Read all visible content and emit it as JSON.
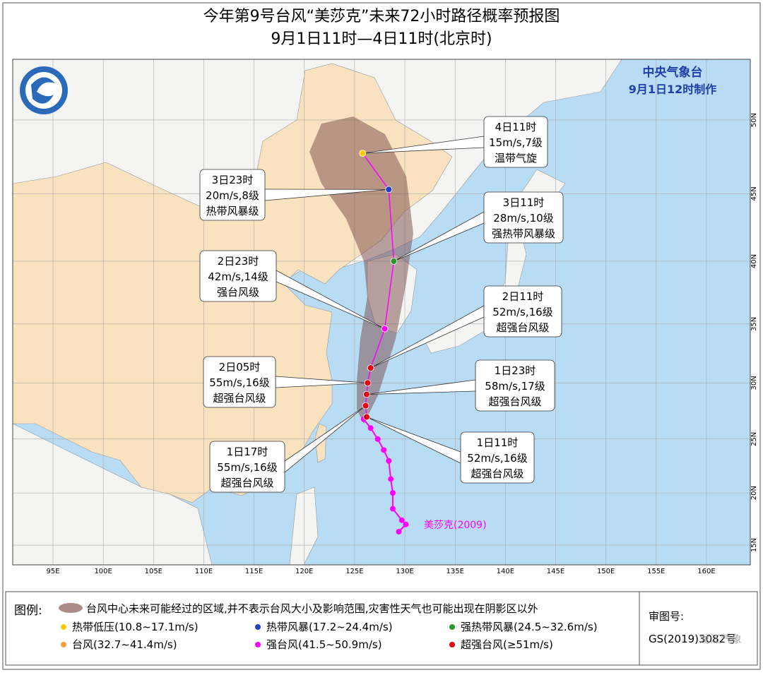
{
  "header": {
    "title": "今年第9号台风“美莎克”未来72小时路径概率预报图",
    "subtitle": "9月1日11时—4日11时(北京时)",
    "agency": "中央气象台",
    "issued": "9月1日12时制作"
  },
  "map": {
    "lon_ticks": [
      {
        "value": 95,
        "label": "95E"
      },
      {
        "value": 100,
        "label": "100E"
      },
      {
        "value": 105,
        "label": "105E"
      },
      {
        "value": 110,
        "label": "110E"
      },
      {
        "value": 115,
        "label": "115E"
      },
      {
        "value": 120,
        "label": "120E"
      },
      {
        "value": 125,
        "label": "125E"
      },
      {
        "value": 130,
        "label": "130E"
      },
      {
        "value": 135,
        "label": "135E"
      },
      {
        "value": 140,
        "label": "140E"
      },
      {
        "value": 145,
        "label": "145E"
      },
      {
        "value": 150,
        "label": "150E"
      },
      {
        "value": 155,
        "label": "155E"
      },
      {
        "value": 160,
        "label": "160E"
      }
    ],
    "lat_ticks": [
      {
        "value": 15,
        "label": "15N"
      },
      {
        "value": 20,
        "label": "20N"
      },
      {
        "value": 25,
        "label": "25N"
      },
      {
        "value": 30,
        "label": "30N"
      },
      {
        "value": 35,
        "label": "35N"
      },
      {
        "value": 40,
        "label": "40N"
      },
      {
        "value": 45,
        "label": "45N"
      },
      {
        "value": 50,
        "label": "50N"
      }
    ],
    "typhoon_label": "美莎克(2009)",
    "past_track": {
      "color": "#ff00ff",
      "lon": [
        129.4,
        130.1,
        129.7,
        128.8,
        128.8,
        128.6,
        128.4,
        127.9,
        127.3,
        126.6,
        125.9,
        126.2
      ],
      "lat": [
        16.3,
        17.0,
        17.4,
        18.5,
        20.0,
        21.3,
        23.0,
        24.0,
        25.0,
        26.0,
        26.8,
        27.0
      ]
    },
    "forecast": [
      {
        "time": "1日11时",
        "speed": "52m/s,16级",
        "level": "超强台风级",
        "lon": 126.2,
        "lat": 27.0,
        "color": "#e60012"
      },
      {
        "time": "1日17时",
        "speed": "55m/s,16级",
        "level": "超强台风级",
        "lon": 126.1,
        "lat": 28.0,
        "color": "#e60012"
      },
      {
        "time": "1日23时",
        "speed": "58m/s,17级",
        "level": "超强台风级",
        "lon": 126.2,
        "lat": 29.0,
        "color": "#e60012"
      },
      {
        "time": "2日05时",
        "speed": "55m/s,16级",
        "level": "超强台风级",
        "lon": 126.3,
        "lat": 30.0,
        "color": "#e60012"
      },
      {
        "time": "2日11时",
        "speed": "52m/s,16级",
        "level": "超强台风级",
        "lon": 126.6,
        "lat": 31.3,
        "color": "#e60012"
      },
      {
        "time": "2日23时",
        "speed": "42m/s,14级",
        "level": "强台风级",
        "lon": 128.0,
        "lat": 34.6,
        "color": "#ff00ff"
      },
      {
        "time": "3日11时",
        "speed": "28m/s,10级",
        "level": "强热带风暴级",
        "lon": 128.9,
        "lat": 40.0,
        "color": "#2a9a2a"
      },
      {
        "time": "3日23时",
        "speed": "20m/s,8级",
        "level": "热带风暴级",
        "lon": 128.4,
        "lat": 45.3,
        "color": "#1f3fc4"
      },
      {
        "time": "4日11时",
        "speed": "15m/s,7级",
        "level": "温带气旋",
        "lon": 125.8,
        "lat": 47.8,
        "color": "#f5d000"
      }
    ]
  },
  "legend": {
    "title": "图例:",
    "cone": "台风中心未来可能经过的区域,并不表示台风大小及影响范围,灾害性天气也可能出现在阴影区以外",
    "items": [
      {
        "name": "热带低压(10.8~17.1m/s)",
        "color": "#f5d000"
      },
      {
        "name": "热带风暴(17.2~24.4m/s)",
        "color": "#1f3fc4"
      },
      {
        "name": "强热带风暴(24.5~32.6m/s)",
        "color": "#2a9a2a"
      },
      {
        "name": "台风(32.7~41.4m/s)",
        "color": "#f0a040"
      },
      {
        "name": "强台风(41.5~50.9m/s)",
        "color": "#ff00ff"
      },
      {
        "name": "超强台风(≥51m/s)",
        "color": "#e60012"
      }
    ],
    "review_label": "审图号:",
    "review_number": "GS(2019)3082号",
    "watermark": "龙江气象"
  }
}
